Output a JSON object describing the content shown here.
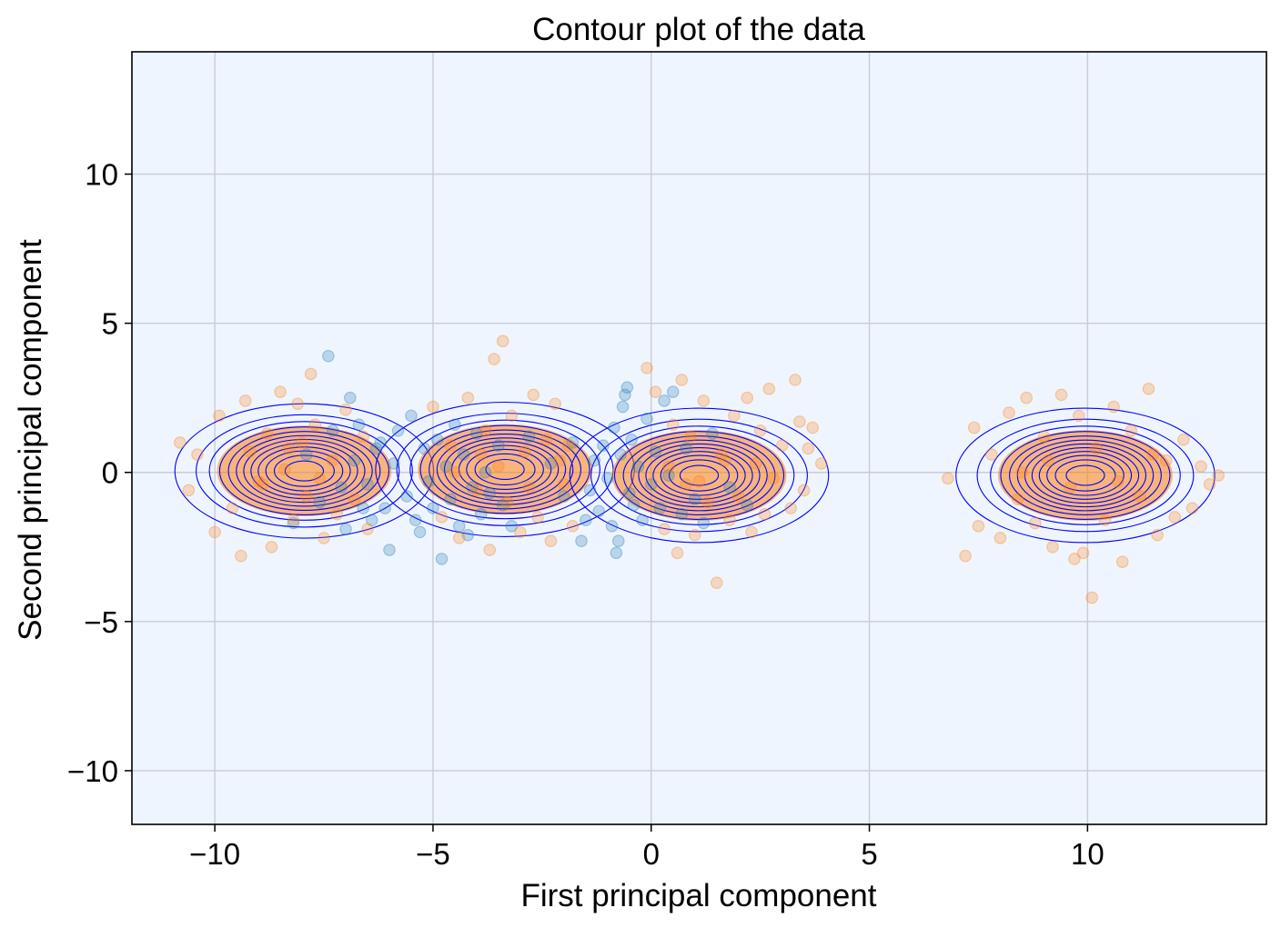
{
  "chart_data": {
    "type": "scatter",
    "title": "Contour plot of the data",
    "xlabel": "First principal component",
    "ylabel": "Second principal component",
    "xlim": [
      -11.9,
      14.1
    ],
    "ylim": [
      -11.8,
      14.1
    ],
    "xticks": [
      -10,
      -5,
      0,
      5,
      10
    ],
    "yticks": [
      -10,
      -5,
      0,
      5,
      10
    ],
    "xtick_labels": [
      "−10",
      "−5",
      "0",
      "5",
      "10"
    ],
    "ytick_labels": [
      "−10",
      "−5",
      "0",
      "5",
      "10"
    ],
    "grid": true,
    "colors": {
      "background": "#eef5fe",
      "grid": "#c8ccd8",
      "series_1": "#1f77b4",
      "series_2": "#ff7f0e",
      "contour_line": "#0000ff",
      "contour_fill": "#ff7f0e"
    },
    "series": [
      {
        "marker": "circle",
        "alpha": 0.25,
        "points": [
          [
            -7.4,
            3.9
          ],
          [
            -6.9,
            2.5
          ],
          [
            -6.7,
            1.6
          ],
          [
            -6.5,
            -0.4
          ],
          [
            -6.4,
            -1.6
          ],
          [
            -6.2,
            1.0
          ],
          [
            -6.1,
            -1.2
          ],
          [
            -6.0,
            -2.6
          ],
          [
            -5.9,
            0.3
          ],
          [
            -5.8,
            1.4
          ],
          [
            -5.6,
            -0.8
          ],
          [
            -5.5,
            1.9
          ],
          [
            -5.4,
            -1.6
          ],
          [
            -5.2,
            0.8
          ],
          [
            -5.1,
            -0.3
          ],
          [
            -5.0,
            -1.2
          ],
          [
            -4.9,
            1.1
          ],
          [
            -4.8,
            -2.9
          ],
          [
            -4.7,
            0.2
          ],
          [
            -4.6,
            -0.9
          ],
          [
            -4.5,
            1.6
          ],
          [
            -4.4,
            -1.8
          ],
          [
            -4.3,
            0.6
          ],
          [
            -4.1,
            -0.5
          ],
          [
            -4.0,
            1.3
          ],
          [
            -3.9,
            -1.4
          ],
          [
            -3.8,
            0.0
          ],
          [
            -3.7,
            -0.7
          ],
          [
            -3.5,
            0.9
          ],
          [
            -3.4,
            -1.1
          ],
          [
            -1.6,
            -2.3
          ],
          [
            -1.4,
            -0.6
          ],
          [
            -1.3,
            0.4
          ],
          [
            -1.2,
            -1.3
          ],
          [
            -1.1,
            0.9
          ],
          [
            -1.0,
            -0.2
          ],
          [
            -0.9,
            -1.8
          ],
          [
            -0.85,
            1.5
          ],
          [
            -0.8,
            -2.7
          ],
          [
            -0.75,
            -2.3
          ],
          [
            -0.7,
            0.6
          ],
          [
            -0.65,
            2.2
          ],
          [
            -0.6,
            2.6
          ],
          [
            -0.55,
            2.85
          ],
          [
            -0.5,
            -0.7
          ],
          [
            -0.45,
            1.1
          ],
          [
            -0.4,
            -1.1
          ],
          [
            -0.3,
            0.2
          ],
          [
            -0.2,
            -1.6
          ],
          [
            -0.1,
            1.8
          ],
          [
            0.0,
            -0.4
          ],
          [
            0.1,
            0.7
          ],
          [
            0.2,
            -1.2
          ],
          [
            0.3,
            2.4
          ],
          [
            0.5,
            2.7
          ],
          [
            0.7,
            -1.4
          ],
          [
            1.0,
            -0.9
          ],
          [
            1.4,
            1.3
          ],
          [
            1.8,
            -0.5
          ],
          [
            2.2,
            -1.1
          ],
          [
            -7.9,
            0.6
          ],
          [
            -7.6,
            -1.0
          ],
          [
            -7.3,
            1.4
          ],
          [
            -7.1,
            -0.5
          ],
          [
            -6.8,
            0.4
          ],
          [
            -6.6,
            -1.2
          ],
          [
            -8.2,
            -1.7
          ],
          [
            -7.0,
            -1.9
          ],
          [
            -6.3,
            0.8
          ],
          [
            -5.3,
            -2.0
          ],
          [
            -4.2,
            -2.1
          ],
          [
            -3.2,
            -1.8
          ],
          [
            -2.8,
            1.2
          ],
          [
            -2.3,
            0.3
          ],
          [
            -2.0,
            -0.8
          ],
          [
            -1.8,
            1.0
          ],
          [
            -1.5,
            -1.6
          ],
          [
            0.4,
            -0.1
          ],
          [
            0.8,
            0.8
          ],
          [
            1.2,
            -1.7
          ]
        ]
      },
      {
        "marker": "circle",
        "alpha": 0.25,
        "points": [
          [
            -10.8,
            1.0
          ],
          [
            -10.6,
            -0.6
          ],
          [
            -10.4,
            0.6
          ],
          [
            -10.0,
            -2.0
          ],
          [
            -9.9,
            1.9
          ],
          [
            -9.6,
            -1.2
          ],
          [
            -9.4,
            -2.8
          ],
          [
            -9.3,
            2.4
          ],
          [
            -9.0,
            -0.3
          ],
          [
            -8.8,
            1.3
          ],
          [
            -8.7,
            -2.5
          ],
          [
            -8.5,
            2.7
          ],
          [
            -8.3,
            0.8
          ],
          [
            -8.2,
            -1.6
          ],
          [
            -8.1,
            2.3
          ],
          [
            -7.9,
            -0.8
          ],
          [
            -7.8,
            3.3
          ],
          [
            -7.7,
            1.6
          ],
          [
            -7.5,
            -2.2
          ],
          [
            -7.3,
            0.4
          ],
          [
            -7.2,
            -1.4
          ],
          [
            -7.0,
            2.1
          ],
          [
            -6.8,
            -0.9
          ],
          [
            -6.6,
            1.2
          ],
          [
            -6.5,
            -1.9
          ],
          [
            -9.2,
            0.7
          ],
          [
            -8.9,
            -0.4
          ],
          [
            -8.4,
            0.1
          ],
          [
            -8.0,
            1.0
          ],
          [
            -7.6,
            -0.2
          ],
          [
            -5.0,
            2.2
          ],
          [
            -4.8,
            -1.5
          ],
          [
            -4.6,
            0.9
          ],
          [
            -4.4,
            -2.2
          ],
          [
            -4.2,
            2.5
          ],
          [
            -4.0,
            -0.6
          ],
          [
            -3.8,
            1.4
          ],
          [
            -3.7,
            -2.6
          ],
          [
            -3.6,
            3.8
          ],
          [
            -3.5,
            0.2
          ],
          [
            -3.4,
            4.4
          ],
          [
            -3.3,
            -1.0
          ],
          [
            -3.2,
            1.9
          ],
          [
            -3.0,
            -2.0
          ],
          [
            -2.9,
            0.7
          ],
          [
            -2.7,
            2.6
          ],
          [
            -2.6,
            -1.5
          ],
          [
            -2.4,
            1.1
          ],
          [
            -2.3,
            -2.3
          ],
          [
            -2.2,
            2.3
          ],
          [
            -2.0,
            -0.4
          ],
          [
            -1.9,
            0.9
          ],
          [
            -1.8,
            -1.8
          ],
          [
            -4.5,
            0.0
          ],
          [
            -3.9,
            0.6
          ],
          [
            -2.8,
            -0.5
          ],
          [
            -2.1,
            0.4
          ],
          [
            -0.1,
            3.5
          ],
          [
            0.1,
            2.7
          ],
          [
            0.3,
            -1.9
          ],
          [
            0.5,
            1.6
          ],
          [
            0.6,
            -2.7
          ],
          [
            0.7,
            3.1
          ],
          [
            0.8,
            -0.4
          ],
          [
            0.9,
            1.2
          ],
          [
            1.0,
            -2.1
          ],
          [
            1.2,
            2.4
          ],
          [
            1.3,
            -1.0
          ],
          [
            1.5,
            -3.7
          ],
          [
            1.6,
            0.6
          ],
          [
            1.8,
            -1.6
          ],
          [
            1.9,
            1.9
          ],
          [
            2.0,
            -0.8
          ],
          [
            2.2,
            2.5
          ],
          [
            2.3,
            -2.0
          ],
          [
            2.4,
            0.3
          ],
          [
            2.5,
            1.4
          ],
          [
            2.6,
            -1.4
          ],
          [
            2.7,
            2.8
          ],
          [
            2.8,
            -0.2
          ],
          [
            3.0,
            0.9
          ],
          [
            3.2,
            -1.2
          ],
          [
            3.3,
            3.1
          ],
          [
            3.4,
            1.7
          ],
          [
            3.5,
            -0.6
          ],
          [
            3.6,
            0.8
          ],
          [
            3.7,
            1.5
          ],
          [
            3.9,
            0.3
          ],
          [
            0.4,
            0.2
          ],
          [
            1.1,
            -0.3
          ],
          [
            1.7,
            0.4
          ],
          [
            6.8,
            -0.2
          ],
          [
            7.2,
            -2.8
          ],
          [
            7.4,
            1.5
          ],
          [
            7.5,
            -1.8
          ],
          [
            7.8,
            0.6
          ],
          [
            8.0,
            -2.2
          ],
          [
            8.2,
            2.0
          ],
          [
            8.4,
            -0.9
          ],
          [
            8.6,
            2.5
          ],
          [
            8.8,
            -1.7
          ],
          [
            9.0,
            1.2
          ],
          [
            9.2,
            -2.5
          ],
          [
            9.4,
            2.6
          ],
          [
            9.6,
            -0.5
          ],
          [
            9.7,
            -2.9
          ],
          [
            9.8,
            1.9
          ],
          [
            9.9,
            -2.7
          ],
          [
            10.1,
            -4.2
          ],
          [
            10.2,
            0.8
          ],
          [
            10.4,
            -1.6
          ],
          [
            10.6,
            2.2
          ],
          [
            10.8,
            -3.0
          ],
          [
            11.0,
            1.4
          ],
          [
            11.2,
            -0.8
          ],
          [
            11.4,
            2.8
          ],
          [
            11.6,
            -2.1
          ],
          [
            11.8,
            0.4
          ],
          [
            12.0,
            -1.5
          ],
          [
            12.2,
            1.1
          ],
          [
            12.4,
            -1.2
          ],
          [
            12.6,
            0.2
          ],
          [
            12.8,
            -0.4
          ],
          [
            13.0,
            -0.1
          ],
          [
            8.5,
            0.0
          ],
          [
            9.1,
            0.4
          ],
          [
            10.7,
            -0.3
          ],
          [
            11.5,
            0.6
          ]
        ]
      }
    ],
    "kde_clusters": [
      {
        "mx": -7.95,
        "my": 0.05,
        "sx": 1.25,
        "sy": 0.95
      },
      {
        "mx": -3.35,
        "my": 0.1,
        "sx": 1.25,
        "sy": 0.95
      },
      {
        "mx": 1.1,
        "my": -0.1,
        "sx": 1.25,
        "sy": 0.95
      },
      {
        "mx": 9.95,
        "my": -0.1,
        "sx": 1.25,
        "sy": 0.95
      }
    ]
  }
}
